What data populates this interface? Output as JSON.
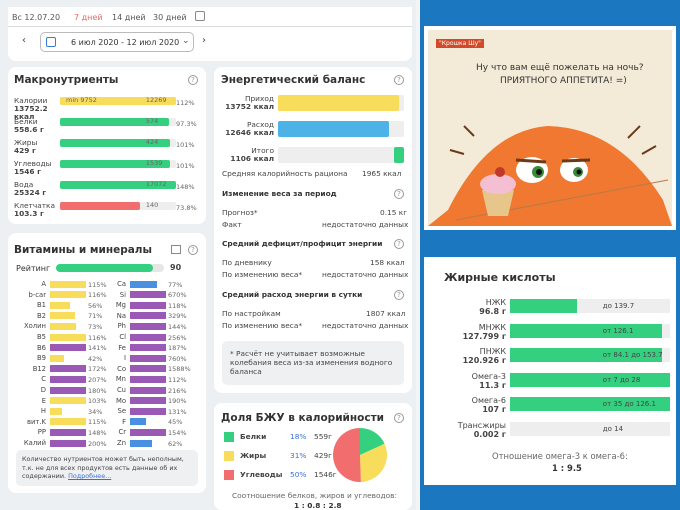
{
  "header": {
    "tabs": [
      "Вс 12.07.20",
      "7 дней",
      "14 дней",
      "30 дней"
    ],
    "range": "6 июл 2020 - 12 июл 2020"
  },
  "macro": {
    "title": "Макронутриенты",
    "rows": [
      {
        "name": "Калории",
        "val": "13752.2",
        "unit": "ккал",
        "pct": "112%",
        "color": "#f8dc5c",
        "fill": 1.0,
        "mark": "12269",
        "min": "min 9752"
      },
      {
        "name": "Белки",
        "val": "558.6 г",
        "unit": "",
        "pct": "97.3%",
        "color": "#35d07f",
        "fill": 0.94,
        "mark": "574"
      },
      {
        "name": "Жиры",
        "val": "429 г",
        "unit": "",
        "pct": "101%",
        "color": "#35d07f",
        "fill": 0.95,
        "mark": "424"
      },
      {
        "name": "Углеводы",
        "val": "1546 г",
        "unit": "",
        "pct": "101%",
        "color": "#35d07f",
        "fill": 0.95,
        "mark": "1539"
      },
      {
        "name": "Вода",
        "val": "25324 г",
        "unit": "",
        "pct": "148%",
        "color": "#35d07f",
        "fill": 1.0,
        "mark": "17072"
      },
      {
        "name": "Клетчатка",
        "val": "103.3 г",
        "unit": "",
        "pct": "73.8%",
        "color": "#f26d6d",
        "fill": 0.69,
        "mark": "140"
      }
    ]
  },
  "energy": {
    "title": "Энергетический баланс",
    "rows": [
      {
        "name": "Приход",
        "val": "13752 ккал",
        "color": "#f8dc5c",
        "fill": 0.96
      },
      {
        "name": "Расход",
        "val": "12646 ккал",
        "color": "#4db3e6",
        "fill": 0.88
      },
      {
        "name": "Итого",
        "val": "1106 ккал",
        "color": "#35d07f",
        "fill": 0.08
      }
    ],
    "avg_label": "Средняя калорийность рациона",
    "avg_val": "1965 ккал",
    "weight_title": "Изменение веса за период",
    "forecast_label": "Прогноз*",
    "forecast_val": "0.15 кг",
    "fact_label": "Факт",
    "fact_val": "недостаточно данных",
    "deficit_title": "Средний дефицит/профицит энергии",
    "diary_label": "По дневнику",
    "diary_val": "158 ккал",
    "wchange_label": "По изменению веса*",
    "wchange_val": "недостаточно данных",
    "expense_title": "Средний расход энергии в сутки",
    "settings_label": "По настройкам",
    "settings_val": "1807 ккал",
    "wchange2_label": "По изменению веса*",
    "wchange2_val": "недостаточно данных",
    "note": "* Расчёт не учитывает возможные колебания веса из-за изменения водного баланса"
  },
  "vitamins": {
    "title": "Витамины и минералы",
    "rating_label": "Рейтинг",
    "rating_val": "90",
    "rating": 0.9,
    "left": [
      [
        "A",
        "115%",
        1,
        "#f8dc5c"
      ],
      [
        "b-car",
        "116%",
        1,
        "#f8dc5c"
      ],
      [
        "B1",
        "56%",
        0.55,
        "#f8dc5c"
      ],
      [
        "B2",
        "71%",
        0.7,
        "#f8dc5c"
      ],
      [
        "Холин",
        "73%",
        0.72,
        "#f8dc5c"
      ],
      [
        "B5",
        "116%",
        1,
        "#f8dc5c"
      ],
      [
        "B6",
        "141%",
        1,
        "#9b59b6"
      ],
      [
        "B9",
        "42%",
        0.4,
        "#f8dc5c"
      ],
      [
        "B12",
        "172%",
        1,
        "#9b59b6"
      ],
      [
        "C",
        "207%",
        1,
        "#9b59b6"
      ],
      [
        "D",
        "180%",
        1,
        "#9b59b6"
      ],
      [
        "E",
        "103%",
        1,
        "#f8dc5c"
      ],
      [
        "H",
        "34%",
        0.34,
        "#f8dc5c"
      ],
      [
        "вит.K",
        "115%",
        1,
        "#f8dc5c"
      ],
      [
        "PP",
        "148%",
        1,
        "#9b59b6"
      ],
      [
        "Калий",
        "200%",
        1,
        "#9b59b6"
      ]
    ],
    "right": [
      [
        "Ca",
        "77%",
        0.75,
        "#4a90e2"
      ],
      [
        "Si",
        "670%",
        1,
        "#9b59b6"
      ],
      [
        "Mg",
        "118%",
        1,
        "#9b59b6"
      ],
      [
        "Na",
        "329%",
        1,
        "#9b59b6"
      ],
      [
        "Ph",
        "144%",
        1,
        "#9b59b6"
      ],
      [
        "Cl",
        "256%",
        1,
        "#9b59b6"
      ],
      [
        "Fe",
        "187%",
        1,
        "#9b59b6"
      ],
      [
        "I",
        "760%",
        1,
        "#9b59b6"
      ],
      [
        "Co",
        "1588%",
        1,
        "#9b59b6"
      ],
      [
        "Mn",
        "112%",
        1,
        "#9b59b6"
      ],
      [
        "Cu",
        "216%",
        1,
        "#9b59b6"
      ],
      [
        "Mo",
        "190%",
        1,
        "#9b59b6"
      ],
      [
        "Se",
        "131%",
        1,
        "#9b59b6"
      ],
      [
        "F",
        "45%",
        0.44,
        "#4a90e2"
      ],
      [
        "Cr",
        "154%",
        1,
        "#9b59b6"
      ],
      [
        "Zn",
        "62%",
        0.6,
        "#4a90e2"
      ]
    ],
    "note": "Количество нутриентов может быть неполным, т.к. не для всех продуктов есть данные об их содержании.",
    "more": "Подробнее..."
  },
  "bju": {
    "title": "Доля БЖУ в калорийности",
    "rows": [
      [
        "Белки",
        "18%",
        "559г",
        "#35d07f"
      ],
      [
        "Жиры",
        "31%",
        "429г",
        "#f8dc5c"
      ],
      [
        "Углеводы",
        "50%",
        "1546г",
        "#f26d6d"
      ]
    ],
    "footer": "Соотношение белков, жиров и углеводов:",
    "ratio": "1 : 0.8 : 2.8"
  },
  "chart_data": {
    "type": "pie",
    "categories": [
      "Белки",
      "Жиры",
      "Углеводы"
    ],
    "values": [
      18,
      31,
      50
    ]
  },
  "comic": {
    "line1": "Ну что вам ещё пожелать на ночь?",
    "line2": "ПРИЯТНОГО АППЕТИТА! =)",
    "brand": "\"Крошка Шу\""
  },
  "fatty": {
    "title": "Жирные кислоты",
    "rows": [
      {
        "name": "НЖК",
        "val": "96.8 г",
        "fill": 0.42,
        "label": "до 139.7"
      },
      {
        "name": "МНЖК",
        "val": "127.799 г",
        "fill": 0.95,
        "label": "от 126.1"
      },
      {
        "name": "ПНЖК",
        "val": "120.926 г",
        "fill": 0.95,
        "label": "от 84.1 до 153.7"
      },
      {
        "name": "Омега-3",
        "val": "11.3 г",
        "fill": 1.0,
        "label": "от 7 до 28"
      },
      {
        "name": "Омега-6",
        "val": "107 г",
        "fill": 1.0,
        "label": "от 35 до 126.1"
      },
      {
        "name": "Трансжиры",
        "val": "0.002 г",
        "fill": 0.0,
        "label": "до 14"
      }
    ],
    "ratio_label": "Отношение омега-3 к омега-6:",
    "ratio": "1 : 9.5"
  }
}
